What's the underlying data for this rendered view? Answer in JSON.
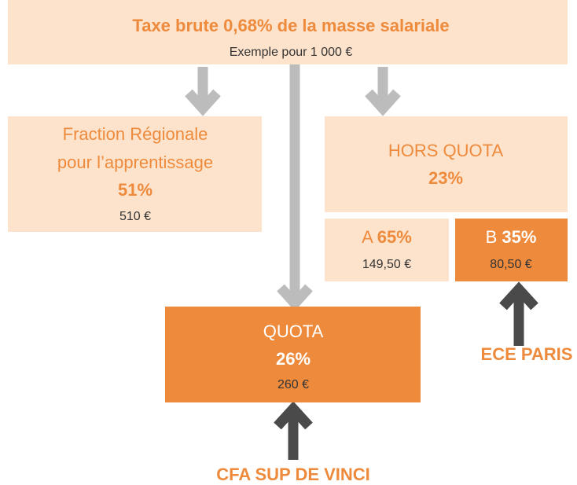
{
  "header": {
    "title": "Taxe brute 0,68% de la masse salariale",
    "subtitle": "Exemple pour 1 000 €"
  },
  "regional": {
    "lines": [
      "Fraction Régionale",
      "pour l’apprentissage"
    ],
    "percent": "51%",
    "amount": "510 €"
  },
  "hors_quota": {
    "label": "HORS QUOTA",
    "percent": "23%"
  },
  "part_a": {
    "label": "A",
    "percent": "65%",
    "amount": "149,50 €"
  },
  "part_b": {
    "label": "B",
    "percent": "35%",
    "amount": "80,50 €"
  },
  "quota": {
    "label": "QUOTA",
    "percent": "26%",
    "amount": "260 €"
  },
  "beneficiaries": {
    "ece": "ECE PARIS",
    "cfa": "CFA SUP DE VINCI"
  }
}
